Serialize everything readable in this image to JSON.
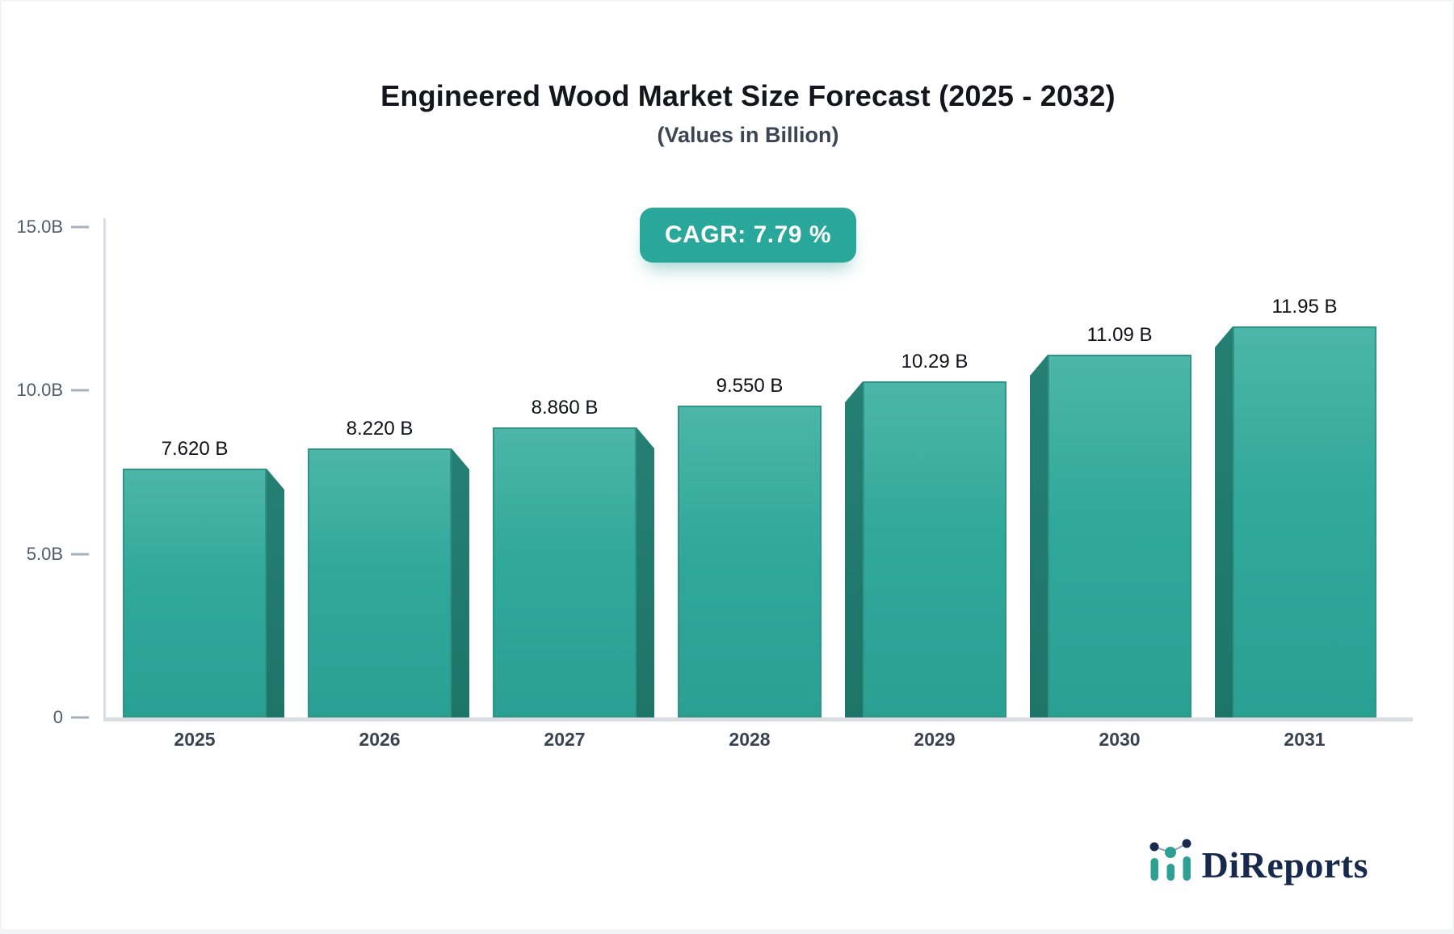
{
  "header": {
    "title": "Engineered Wood Market Size Forecast (2025 - 2032)",
    "subtitle": "(Values in Billion)",
    "cagr_label": "CAGR: 7.79 %"
  },
  "chart_data": {
    "type": "bar",
    "title": "Engineered Wood Market Size Forecast (2025 - 2032)",
    "subtitle": "(Values in Billion)",
    "cagr_percent": 7.79,
    "categories": [
      "2025",
      "2026",
      "2027",
      "2028",
      "2029",
      "2030",
      "2031"
    ],
    "values": [
      7.62,
      8.22,
      8.86,
      9.55,
      10.29,
      11.09,
      11.95
    ],
    "value_labels": [
      "7.620 B",
      "8.220 B",
      "8.860 B",
      "9.550 B",
      "10.29 B",
      "11.09 B",
      "11.95 B"
    ],
    "xlabel": "",
    "ylabel": "",
    "ylim": [
      0,
      15
    ],
    "yticks": [
      {
        "value": 0,
        "label": "0"
      },
      {
        "value": 5,
        "label": "5.0B"
      },
      {
        "value": 10,
        "label": "10.0B"
      },
      {
        "value": 15,
        "label": "15.0B"
      }
    ],
    "grid": false,
    "legend": false,
    "colors": {
      "bar_top": "#4cb6a8",
      "bar_bottom": "#2aa093",
      "bar_side": "#1f7d70",
      "bar_border": "#2f9386",
      "accent": "#2aa79b",
      "axis": "#d9dce1"
    }
  },
  "footer": {
    "brand": "DiReports"
  }
}
